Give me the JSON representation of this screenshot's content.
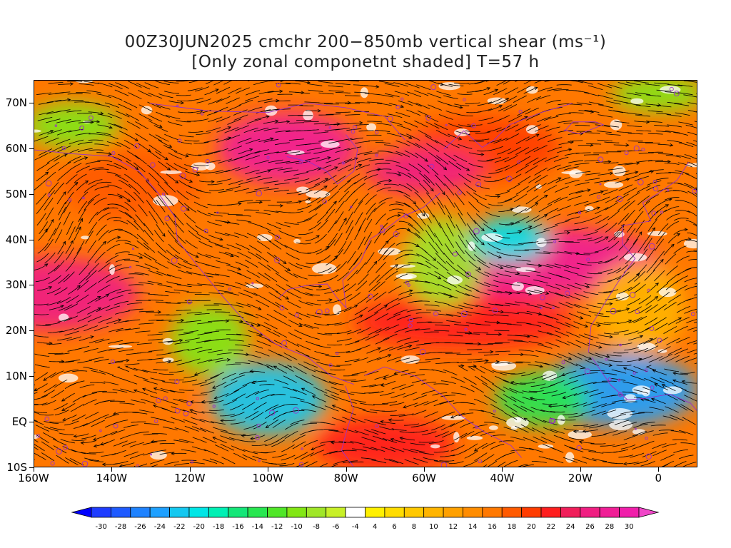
{
  "title": {
    "line1": "00Z30JUN2025 cmchr 200−850mb vertical shear (ms⁻¹)",
    "line2": "[Only zonal componetnt shaded] T=57 h"
  },
  "axes": {
    "y_labels": [
      "70N",
      "60N",
      "50N",
      "40N",
      "30N",
      "20N",
      "10N",
      "EQ",
      "10S"
    ],
    "y_values": [
      70,
      60,
      50,
      40,
      30,
      20,
      10,
      0,
      -10
    ],
    "x_labels": [
      "160W",
      "140W",
      "120W",
      "100W",
      "80W",
      "60W",
      "40W",
      "20W",
      "0"
    ],
    "x_values": [
      -160,
      -140,
      -120,
      -100,
      -80,
      -60,
      -40,
      -20,
      0
    ],
    "lon_range": [
      -160,
      10
    ],
    "lat_range": [
      -10,
      75
    ]
  },
  "colorbar": {
    "labels": [
      "-30",
      "-28",
      "-26",
      "-24",
      "-22",
      "-20",
      "-18",
      "-16",
      "-14",
      "-12",
      "-10",
      "-8",
      "-6",
      "-4",
      "4",
      "6",
      "8",
      "10",
      "12",
      "14",
      "16",
      "18",
      "20",
      "22",
      "24",
      "26",
      "28",
      "30"
    ],
    "colors": [
      "#1e3cff",
      "#1e5aff",
      "#1e82ff",
      "#1ea0ff",
      "#14c8f0",
      "#00e6e6",
      "#00f0b4",
      "#14e678",
      "#28e650",
      "#50e628",
      "#82e614",
      "#a0e628",
      "#c8f028",
      "#ffffff",
      "#fff000",
      "#ffdc00",
      "#ffc800",
      "#ffb400",
      "#ffa000",
      "#ff8c00",
      "#ff7800",
      "#ff5a00",
      "#ff3c00",
      "#ff1e1e",
      "#f01e5a",
      "#f01e82",
      "#f01e96",
      "#f01eaa"
    ],
    "low_arrow_color": "#0000ff",
    "high_arrow_color": "#f046c8"
  },
  "map": {
    "description_colors": {
      "strong_positive": "#f01e82",
      "positive": "#ff7800",
      "weak_positive": "#ffc800",
      "weak_negative": "#82e614",
      "negative": "#14e678",
      "strong_negative": "#1ea0ff",
      "streamline": "#000000",
      "coastline": "#9b30c8"
    },
    "shear_blobs": [
      {
        "lon": -155,
        "lat": 28,
        "rx": 22,
        "ry": 8,
        "level": 26
      },
      {
        "lon": -135,
        "lat": 52,
        "rx": 18,
        "ry": 8,
        "level": 18
      },
      {
        "lon": -120,
        "lat": 38,
        "rx": 15,
        "ry": 10,
        "level": 16
      },
      {
        "lon": -95,
        "lat": 60,
        "rx": 18,
        "ry": 8,
        "level": 28
      },
      {
        "lon": -75,
        "lat": 35,
        "rx": 12,
        "ry": 6,
        "level": 16
      },
      {
        "lon": -45,
        "lat": 60,
        "rx": 20,
        "ry": 7,
        "level": 20
      },
      {
        "lon": -60,
        "lat": 55,
        "rx": 15,
        "ry": 5,
        "level": 26
      },
      {
        "lon": -30,
        "lat": 35,
        "rx": 30,
        "ry": 8,
        "level": 28
      },
      {
        "lon": -50,
        "lat": 22,
        "rx": 28,
        "ry": 6,
        "level": 22
      },
      {
        "lon": -140,
        "lat": 0,
        "rx": 22,
        "ry": 12,
        "level": 16
      },
      {
        "lon": -70,
        "lat": -5,
        "rx": 18,
        "ry": 6,
        "level": 22
      },
      {
        "lon": -5,
        "lat": 25,
        "rx": 12,
        "ry": 10,
        "level": 10
      },
      {
        "lon": -100,
        "lat": 5,
        "rx": 15,
        "ry": 8,
        "level": -22
      },
      {
        "lon": -115,
        "lat": 18,
        "rx": 10,
        "ry": 8,
        "level": -10
      },
      {
        "lon": -55,
        "lat": 35,
        "rx": 10,
        "ry": 10,
        "level": -8
      },
      {
        "lon": -38,
        "lat": 40,
        "rx": 10,
        "ry": 5,
        "level": -20
      },
      {
        "lon": -10,
        "lat": 7,
        "rx": 20,
        "ry": 8,
        "level": -24
      },
      {
        "lon": -30,
        "lat": 5,
        "rx": 12,
        "ry": 6,
        "level": -14
      },
      {
        "lon": -150,
        "lat": 65,
        "rx": 12,
        "ry": 5,
        "level": -10
      },
      {
        "lon": 0,
        "lat": 72,
        "rx": 12,
        "ry": 4,
        "level": -10
      }
    ]
  }
}
